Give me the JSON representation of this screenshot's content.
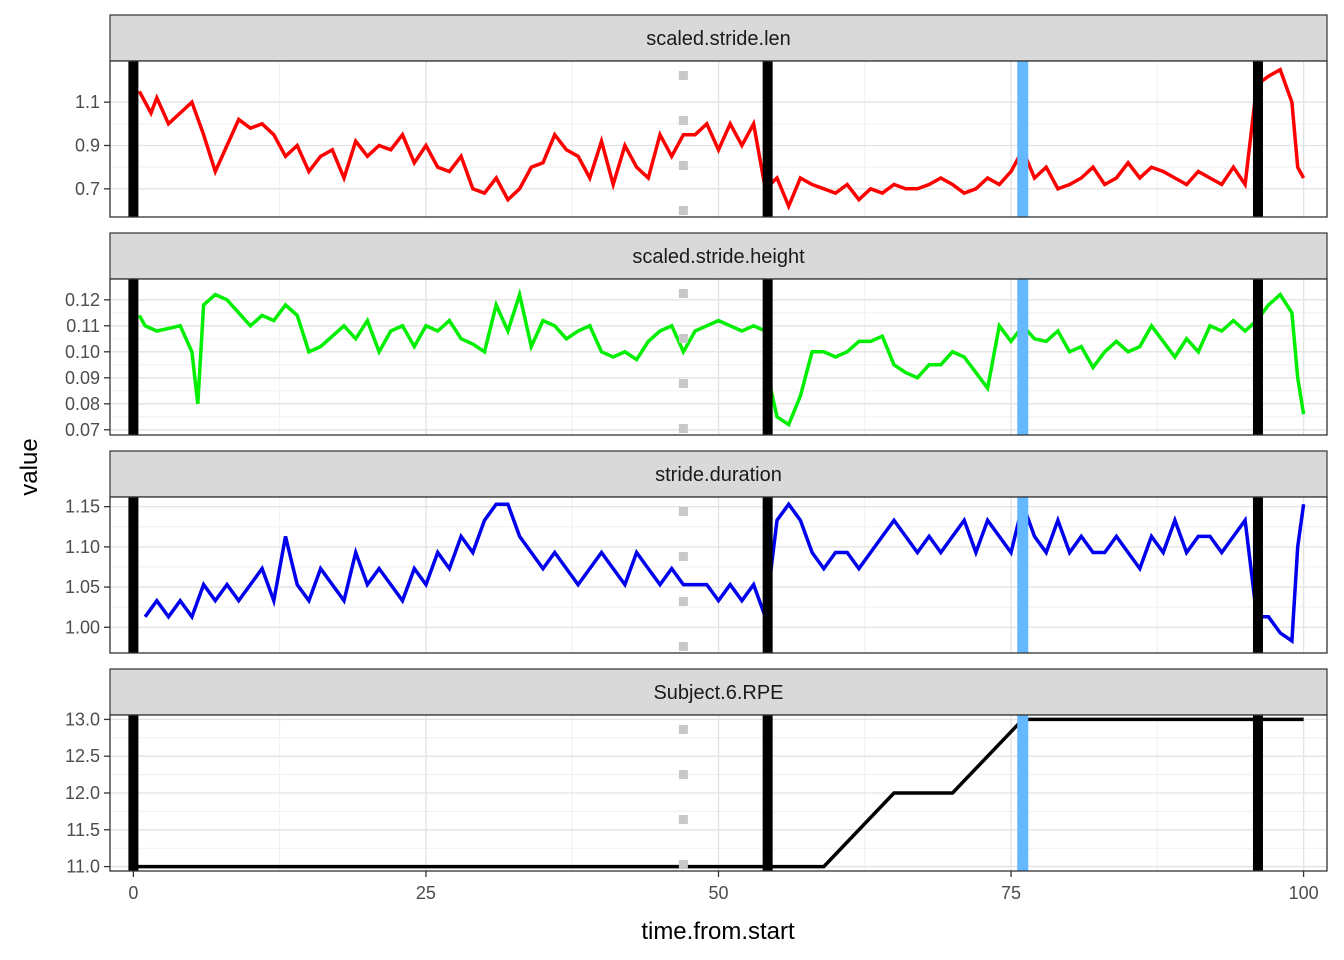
{
  "chart_data": {
    "type": "line",
    "layout": "facet_wrap_vertical",
    "xlabel": "time.from.start",
    "ylabel": "value",
    "xlim": [
      -2,
      102
    ],
    "x_ticks": [
      0,
      25,
      50,
      75,
      100
    ],
    "x_tick_labels": [
      "0",
      "25",
      "50",
      "75",
      "100"
    ],
    "grid": true,
    "vlines": [
      {
        "x": 0,
        "color": "#000000",
        "style": "solid"
      },
      {
        "x": 54.2,
        "color": "#000000",
        "style": "solid"
      },
      {
        "x": 96.1,
        "color": "#000000",
        "style": "solid"
      },
      {
        "x": 47,
        "color": "#c8c8c8",
        "style": "dotted"
      },
      {
        "x": 76,
        "color": "#63b8ff",
        "style": "solid"
      }
    ],
    "panels": [
      {
        "strip": "scaled.stride.len",
        "color": "#ff0000",
        "ylim": [
          0.57,
          1.29
        ],
        "y_ticks": [
          0.7,
          0.9,
          1.1
        ],
        "y_tick_labels": [
          "0.7",
          "0.9",
          "1.1"
        ],
        "x": [
          0.5,
          1.5,
          2,
          3,
          4,
          5,
          6,
          7,
          8,
          9,
          10,
          11,
          12,
          13,
          14,
          15,
          16,
          17,
          18,
          19,
          20,
          21,
          22,
          23,
          24,
          25,
          26,
          27,
          28,
          29,
          30,
          31,
          32,
          33,
          34,
          35,
          36,
          37,
          38,
          39,
          40,
          41,
          42,
          43,
          44,
          45,
          46,
          47,
          48,
          49,
          50,
          51,
          52,
          53,
          54,
          55,
          56,
          57,
          58,
          59,
          60,
          61,
          62,
          63,
          64,
          65,
          66,
          67,
          68,
          69,
          70,
          71,
          72,
          73,
          74,
          75,
          76,
          77,
          78,
          79,
          80,
          81,
          82,
          83,
          84,
          85,
          86,
          87,
          88,
          89,
          90,
          91,
          92,
          93,
          94,
          95,
          96,
          97,
          98,
          99,
          99.5,
          100
        ],
        "values": [
          1.15,
          1.05,
          1.12,
          1.0,
          1.05,
          1.1,
          0.95,
          0.78,
          0.9,
          1.02,
          0.98,
          1.0,
          0.95,
          0.85,
          0.9,
          0.78,
          0.85,
          0.88,
          0.75,
          0.92,
          0.85,
          0.9,
          0.88,
          0.95,
          0.82,
          0.9,
          0.8,
          0.78,
          0.85,
          0.7,
          0.68,
          0.75,
          0.65,
          0.7,
          0.8,
          0.82,
          0.95,
          0.88,
          0.85,
          0.75,
          0.92,
          0.72,
          0.9,
          0.8,
          0.75,
          0.95,
          0.85,
          0.95,
          0.95,
          1.0,
          0.88,
          1.0,
          0.9,
          1.0,
          0.7,
          0.75,
          0.62,
          0.75,
          0.72,
          0.7,
          0.68,
          0.72,
          0.65,
          0.7,
          0.68,
          0.72,
          0.7,
          0.7,
          0.72,
          0.75,
          0.72,
          0.68,
          0.7,
          0.75,
          0.72,
          0.78,
          0.88,
          0.75,
          0.8,
          0.7,
          0.72,
          0.75,
          0.8,
          0.72,
          0.75,
          0.82,
          0.75,
          0.8,
          0.78,
          0.75,
          0.72,
          0.78,
          0.75,
          0.72,
          0.8,
          0.72,
          1.18,
          1.22,
          1.25,
          1.1,
          0.8,
          0.75
        ]
      },
      {
        "strip": "scaled.stride.height",
        "color": "#00ee00",
        "ylim": [
          0.068,
          0.128
        ],
        "y_ticks": [
          0.07,
          0.08,
          0.09,
          0.1,
          0.11,
          0.12
        ],
        "y_tick_labels": [
          "0.07",
          "0.08",
          "0.09",
          "0.10",
          "0.11",
          "0.12"
        ],
        "x": [
          0.5,
          1,
          2,
          3,
          4,
          5,
          5.5,
          6,
          7,
          8,
          9,
          10,
          11,
          12,
          13,
          14,
          15,
          16,
          17,
          18,
          19,
          20,
          21,
          22,
          23,
          24,
          25,
          26,
          27,
          28,
          29,
          30,
          31,
          32,
          33,
          34,
          35,
          36,
          37,
          38,
          39,
          40,
          41,
          42,
          43,
          44,
          45,
          46,
          47,
          48,
          49,
          50,
          51,
          52,
          53,
          54,
          54.5,
          55,
          56,
          57,
          58,
          59,
          60,
          61,
          62,
          63,
          64,
          65,
          66,
          67,
          68,
          69,
          70,
          71,
          72,
          73,
          74,
          75,
          76,
          77,
          78,
          79,
          80,
          81,
          82,
          83,
          84,
          85,
          86,
          87,
          88,
          89,
          90,
          91,
          92,
          93,
          94,
          95,
          96,
          97,
          98,
          99,
          99.5,
          100
        ],
        "values": [
          0.114,
          0.11,
          0.108,
          0.109,
          0.11,
          0.1,
          0.08,
          0.118,
          0.122,
          0.12,
          0.115,
          0.11,
          0.114,
          0.112,
          0.118,
          0.114,
          0.1,
          0.102,
          0.106,
          0.11,
          0.105,
          0.112,
          0.1,
          0.108,
          0.11,
          0.102,
          0.11,
          0.108,
          0.112,
          0.105,
          0.103,
          0.1,
          0.118,
          0.108,
          0.122,
          0.102,
          0.112,
          0.11,
          0.105,
          0.108,
          0.11,
          0.1,
          0.098,
          0.1,
          0.097,
          0.104,
          0.108,
          0.11,
          0.1,
          0.108,
          0.11,
          0.112,
          0.11,
          0.108,
          0.11,
          0.108,
          0.085,
          0.075,
          0.072,
          0.083,
          0.1,
          0.1,
          0.098,
          0.1,
          0.104,
          0.104,
          0.106,
          0.095,
          0.092,
          0.09,
          0.095,
          0.095,
          0.1,
          0.098,
          0.092,
          0.086,
          0.11,
          0.104,
          0.11,
          0.105,
          0.104,
          0.108,
          0.1,
          0.102,
          0.094,
          0.1,
          0.104,
          0.1,
          0.102,
          0.11,
          0.104,
          0.098,
          0.105,
          0.1,
          0.11,
          0.108,
          0.112,
          0.108,
          0.112,
          0.118,
          0.122,
          0.115,
          0.09,
          0.076
        ]
      },
      {
        "strip": "stride.duration",
        "color": "#0000ee",
        "ylim": [
          0.968,
          1.162
        ],
        "y_ticks": [
          1.0,
          1.05,
          1.1,
          1.15
        ],
        "y_tick_labels": [
          "1.00",
          "1.05",
          "1.10",
          "1.15"
        ],
        "x": [
          1,
          2,
          3,
          4,
          5,
          6,
          7,
          8,
          9,
          10,
          11,
          12,
          13,
          14,
          15,
          16,
          17,
          18,
          19,
          20,
          21,
          22,
          23,
          24,
          25,
          26,
          27,
          28,
          29,
          30,
          31,
          32,
          33,
          34,
          35,
          36,
          37,
          38,
          39,
          40,
          41,
          42,
          43,
          44,
          45,
          46,
          47,
          48,
          49,
          50,
          51,
          52,
          53,
          54,
          55,
          56,
          57,
          58,
          59,
          60,
          61,
          62,
          63,
          64,
          65,
          66,
          67,
          68,
          69,
          70,
          71,
          72,
          73,
          74,
          75,
          76,
          77,
          78,
          79,
          80,
          81,
          82,
          83,
          84,
          85,
          86,
          87,
          88,
          89,
          90,
          91,
          92,
          93,
          94,
          95,
          96,
          97,
          98,
          99,
          99.5,
          100
        ],
        "values": [
          1.013,
          1.033,
          1.013,
          1.033,
          1.013,
          1.053,
          1.033,
          1.053,
          1.033,
          1.053,
          1.073,
          1.033,
          1.113,
          1.053,
          1.033,
          1.073,
          1.053,
          1.033,
          1.093,
          1.053,
          1.073,
          1.053,
          1.033,
          1.073,
          1.053,
          1.093,
          1.073,
          1.113,
          1.093,
          1.133,
          1.153,
          1.153,
          1.113,
          1.093,
          1.073,
          1.093,
          1.073,
          1.053,
          1.073,
          1.093,
          1.073,
          1.053,
          1.093,
          1.073,
          1.053,
          1.073,
          1.053,
          1.053,
          1.053,
          1.033,
          1.053,
          1.033,
          1.053,
          1.013,
          1.133,
          1.153,
          1.133,
          1.093,
          1.073,
          1.093,
          1.093,
          1.073,
          1.093,
          1.113,
          1.133,
          1.113,
          1.093,
          1.113,
          1.093,
          1.113,
          1.133,
          1.093,
          1.133,
          1.113,
          1.093,
          1.153,
          1.113,
          1.093,
          1.133,
          1.093,
          1.113,
          1.093,
          1.093,
          1.113,
          1.093,
          1.073,
          1.113,
          1.093,
          1.133,
          1.093,
          1.113,
          1.113,
          1.093,
          1.113,
          1.133,
          1.013,
          1.013,
          0.993,
          0.983,
          1.1,
          1.153
        ]
      },
      {
        "strip": "Subject.6.RPE",
        "color": "#000000",
        "ylim": [
          10.94,
          13.06
        ],
        "y_ticks": [
          11.0,
          11.5,
          12.0,
          12.5,
          13.0
        ],
        "y_tick_labels": [
          "11.0",
          "11.5",
          "12.0",
          "12.5",
          "13.0"
        ],
        "x": [
          0,
          59,
          65,
          70,
          76,
          100
        ],
        "values": [
          11,
          11,
          12,
          12,
          13,
          13
        ]
      }
    ]
  }
}
